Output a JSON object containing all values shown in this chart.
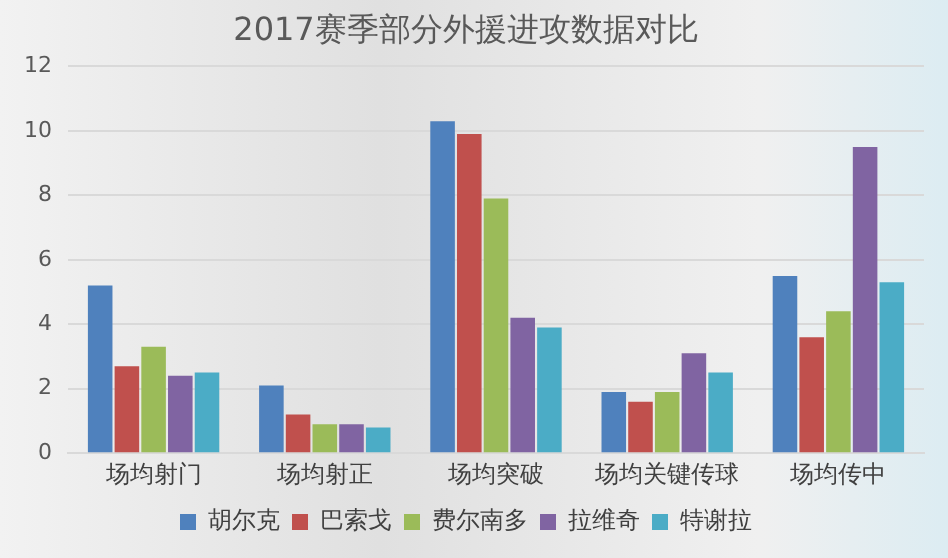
{
  "chart_data": {
    "type": "bar",
    "title": "2017赛季部分外援进攻数据对比",
    "categories": [
      "场均射门",
      "场均射正",
      "场均突破",
      "场均关键传球",
      "场均传中"
    ],
    "series": [
      {
        "name": "胡尔克",
        "color": "#4f81bd",
        "values": [
          5.2,
          2.1,
          10.3,
          1.9,
          5.5
        ]
      },
      {
        "name": "巴索戈",
        "color": "#c0504d",
        "values": [
          2.7,
          1.2,
          9.9,
          1.6,
          3.6
        ]
      },
      {
        "name": "费尔南多",
        "color": "#9bbb59",
        "values": [
          3.3,
          0.9,
          7.9,
          1.9,
          4.4
        ]
      },
      {
        "name": "拉维奇",
        "color": "#8064a2",
        "values": [
          2.4,
          0.9,
          4.2,
          3.1,
          9.5
        ]
      },
      {
        "name": "特谢拉",
        "color": "#4bacc6",
        "values": [
          2.5,
          0.8,
          3.9,
          2.5,
          5.3
        ]
      }
    ],
    "ylim": [
      0,
      12
    ],
    "yticks": [
      0,
      2,
      4,
      6,
      8,
      10,
      12
    ],
    "grid": "y",
    "legend": "bottom"
  }
}
